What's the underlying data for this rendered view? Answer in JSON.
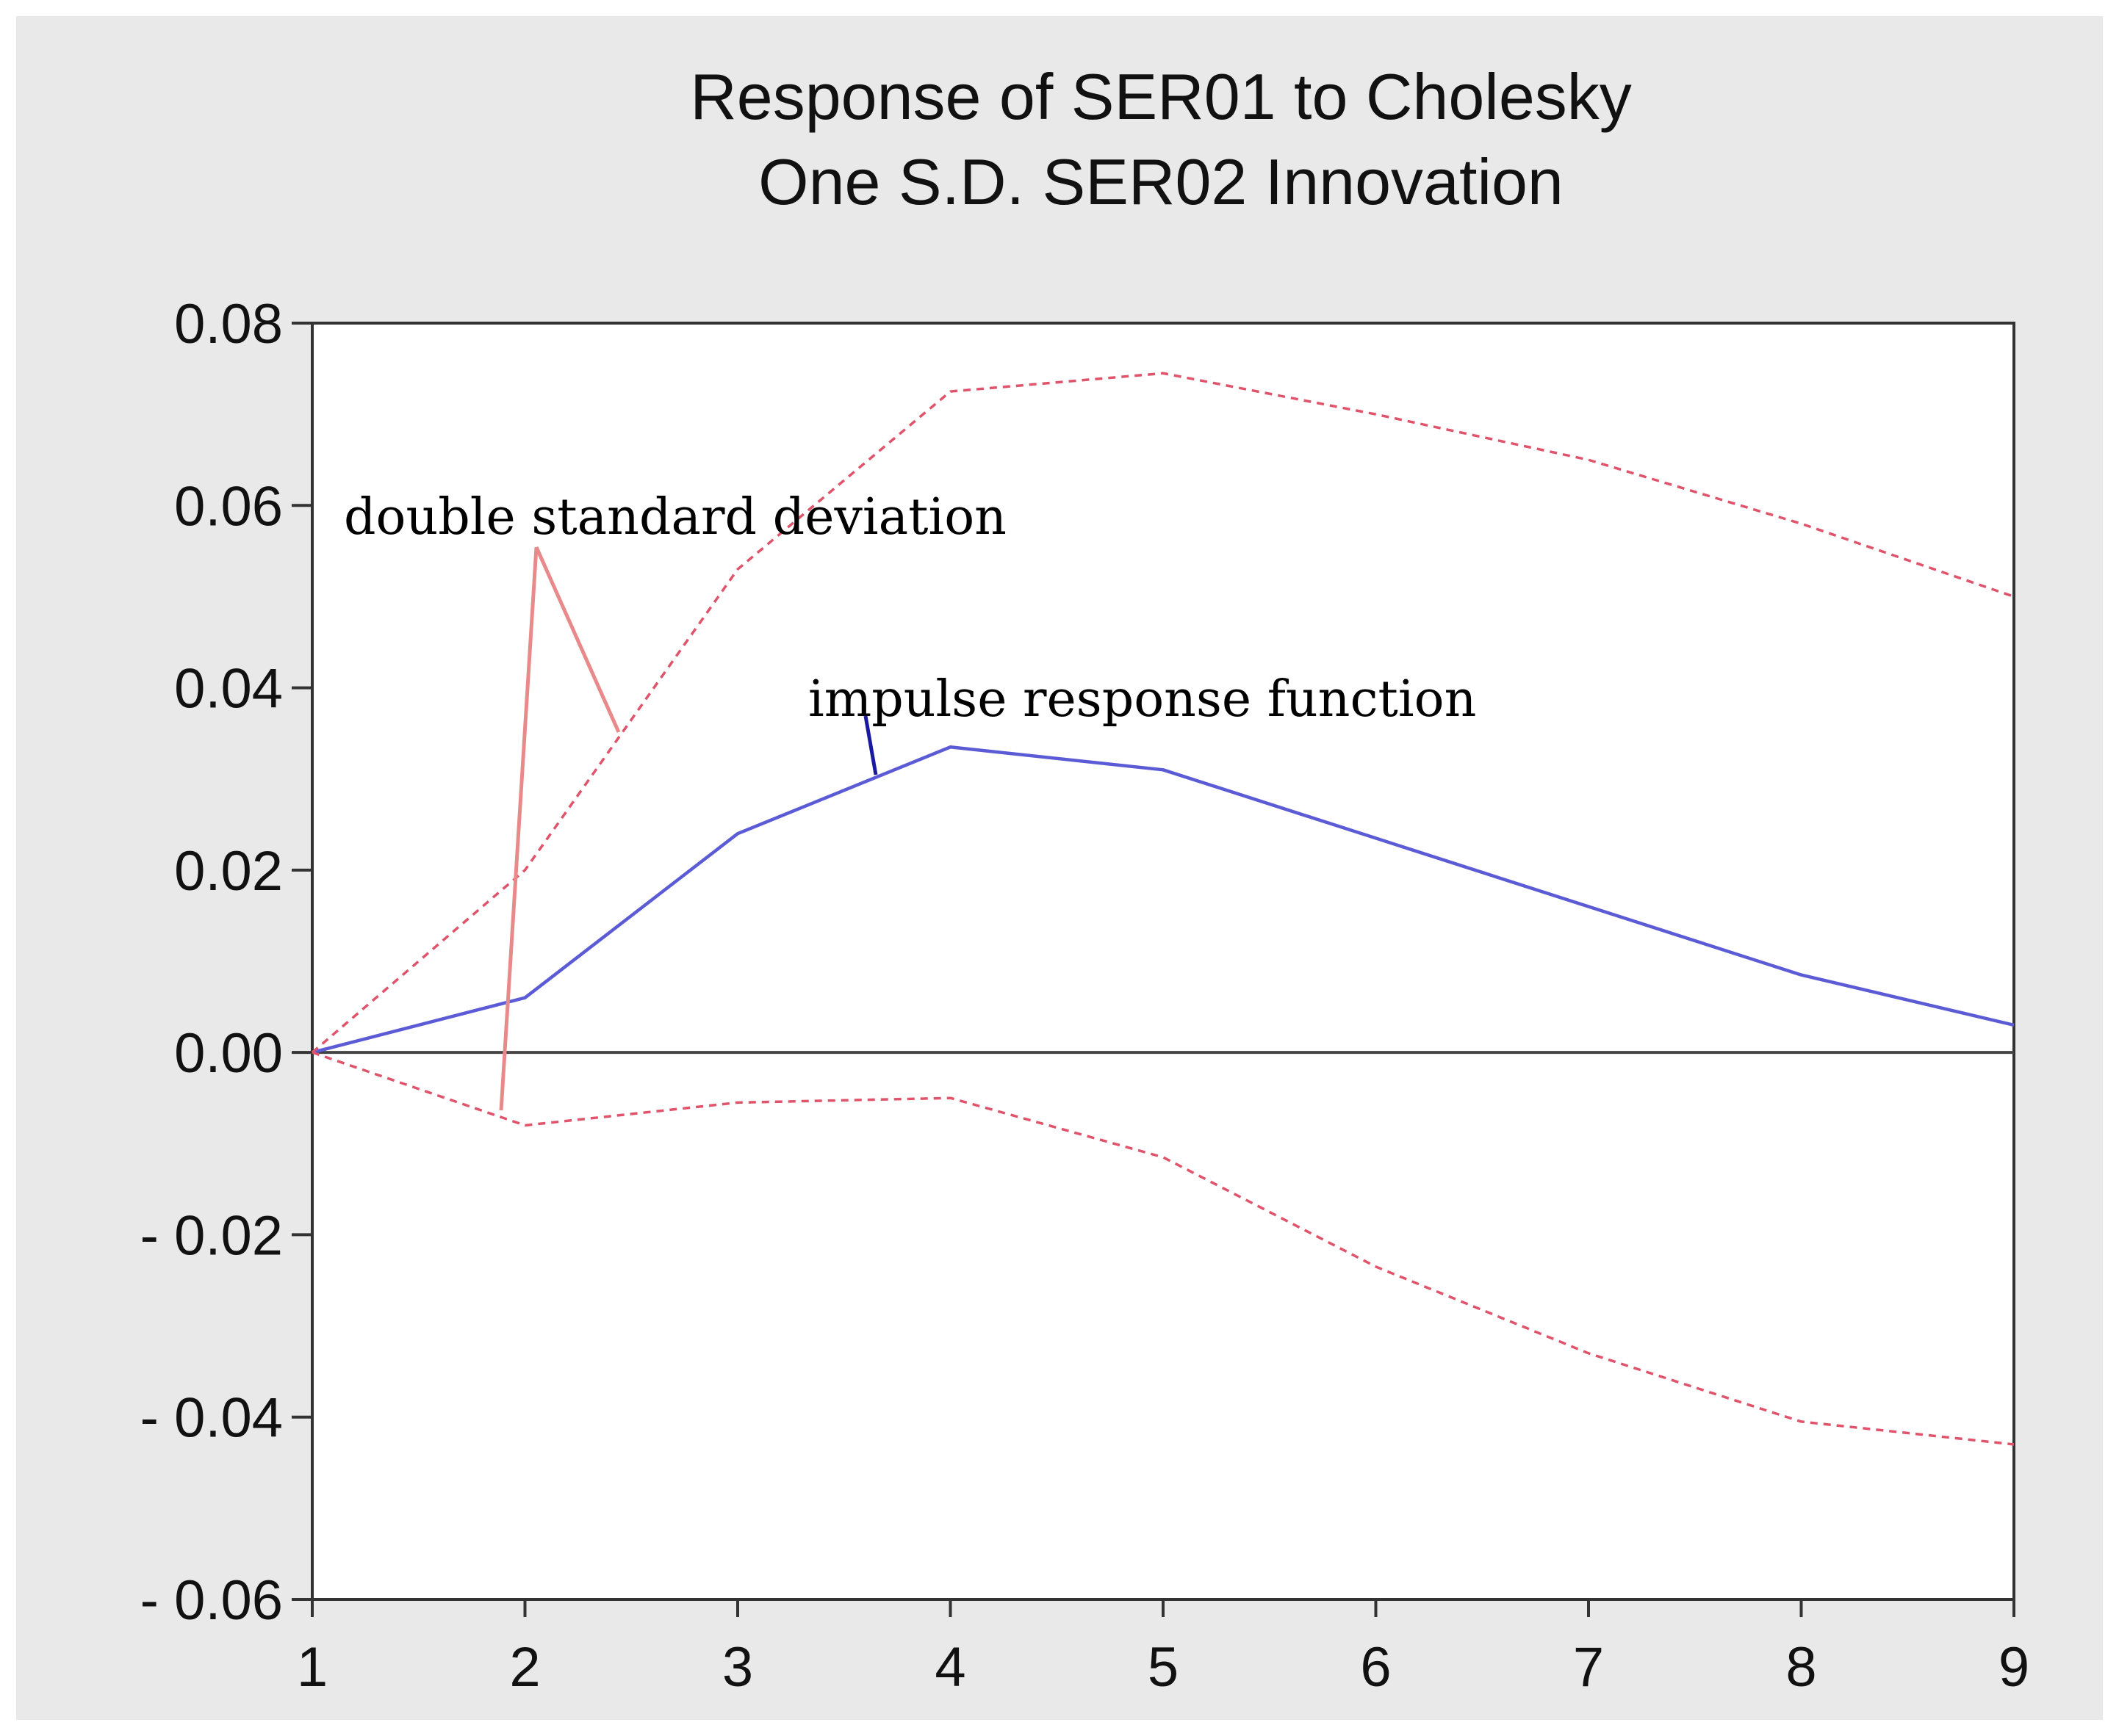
{
  "chart_data": {
    "type": "line",
    "title": "Response of SER01 to Cholesky One S.D. SER02 Innovation",
    "title_lines": [
      "Response of SER01 to Cholesky",
      "One S.D. SER02 Innovation"
    ],
    "xlabel": "",
    "ylabel": "",
    "x": [
      1,
      2,
      3,
      4,
      5,
      6,
      7,
      8,
      9
    ],
    "xlim": [
      1,
      9
    ],
    "ylim": [
      -0.06,
      0.08
    ],
    "x_tick_labels": [
      "1",
      "2",
      "3",
      "4",
      "5",
      "6",
      "7",
      "8",
      "9"
    ],
    "y_ticks": [
      0.08,
      0.06,
      0.04,
      0.02,
      0.0,
      -0.02,
      -0.04,
      -0.06
    ],
    "y_tick_labels": [
      "0.08",
      "0.06",
      "0.04",
      "0.02",
      "0.00",
      "- 0.02",
      "- 0.04",
      "- 0.06"
    ],
    "zero_line": true,
    "grid": false,
    "series": [
      {
        "name": "impulse response function",
        "style": "solid",
        "color": "#5b5bd6",
        "values": [
          0.0,
          0.006,
          0.024,
          0.0335,
          0.031,
          0.0235,
          0.016,
          0.0085,
          0.003
        ]
      },
      {
        "name": "upper band",
        "style": "dashed",
        "color": "#e0546b",
        "values": [
          0.0,
          0.02,
          0.053,
          0.0725,
          0.0745,
          0.07,
          0.065,
          0.058,
          0.05
        ]
      },
      {
        "name": "lower band",
        "style": "dashed",
        "color": "#e0546b",
        "values": [
          0.0,
          -0.008,
          -0.0055,
          -0.005,
          -0.0115,
          -0.0235,
          -0.033,
          -0.0405,
          -0.043
        ]
      }
    ],
    "annotations": [
      {
        "text": "double standard deviation",
        "color": "#e88a8a",
        "targets": "upper band and lower band"
      },
      {
        "text": "impulse response function",
        "color": "#1a1aa0",
        "targets": "impulse response function"
      }
    ]
  }
}
